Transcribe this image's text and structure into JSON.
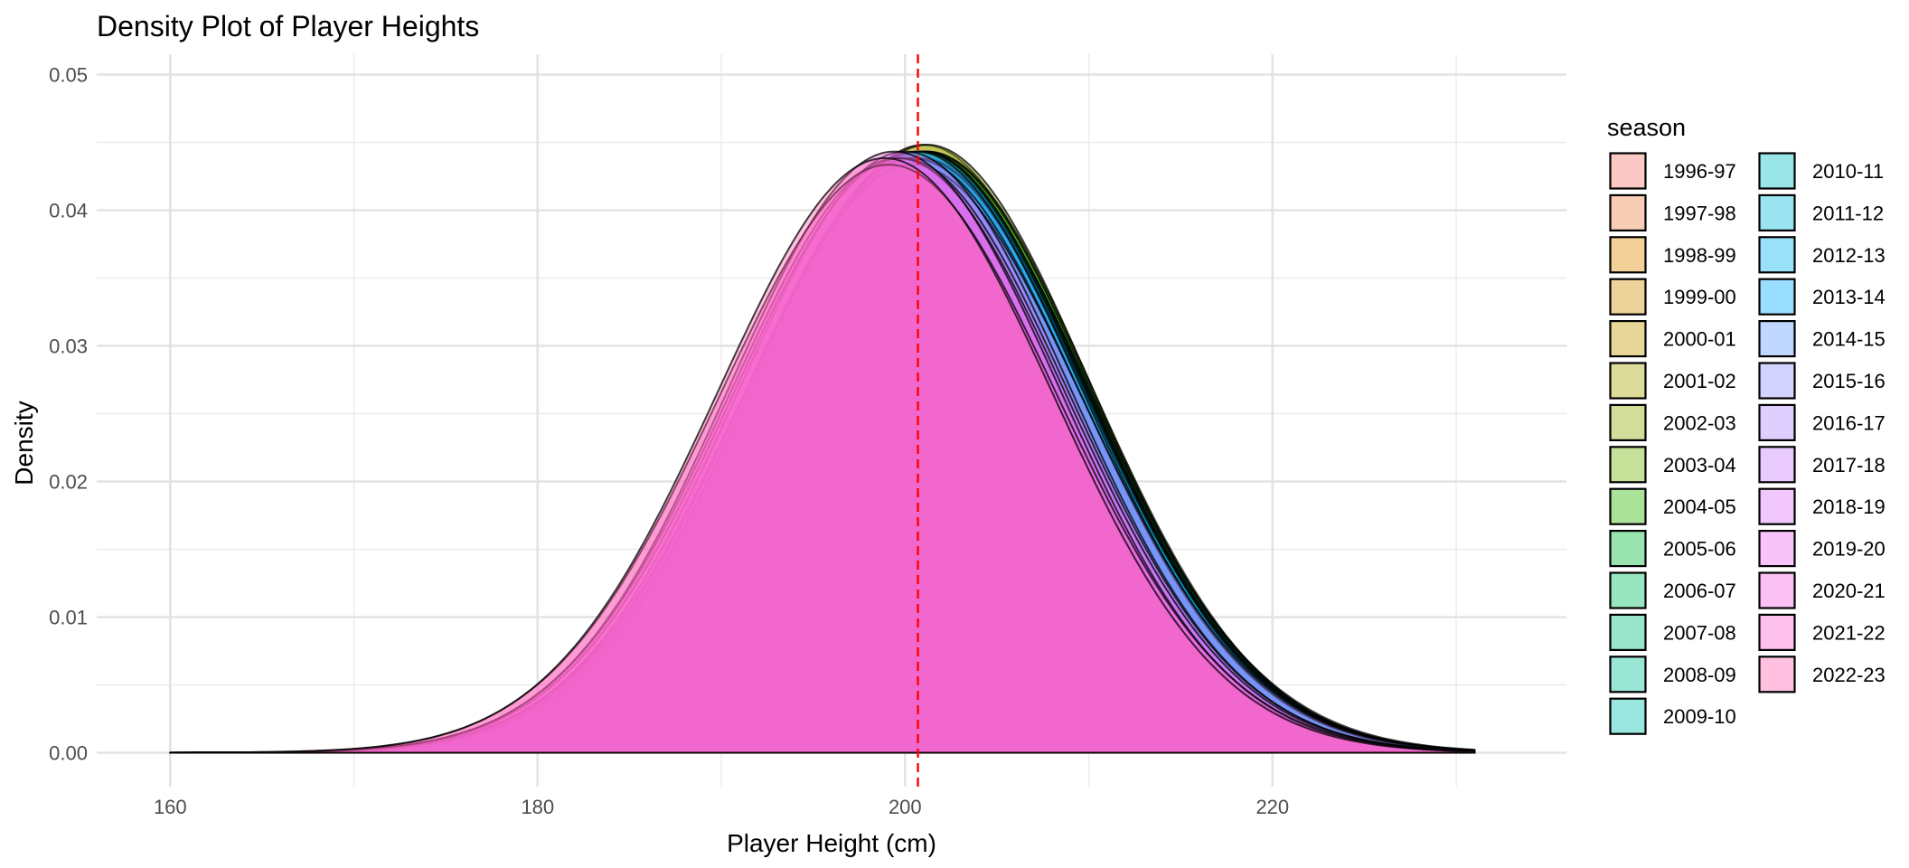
{
  "chart_data": {
    "type": "area",
    "subtype": "density",
    "title": "Density Plot of Player Heights",
    "xlabel": "Player Height (cm)",
    "ylabel": "Density",
    "xlim": [
      156,
      236
    ],
    "ylim": [
      -0.0025,
      0.0515
    ],
    "x_ticks": [
      160,
      180,
      200,
      220
    ],
    "x_minor": [
      170,
      190,
      210,
      230
    ],
    "y_ticks": [
      0.0,
      0.01,
      0.02,
      0.03,
      0.04,
      0.05
    ],
    "y_tick_labels": [
      "0.00",
      "0.01",
      "0.02",
      "0.03",
      "0.04",
      "0.05"
    ],
    "x_range": [
      160,
      231
    ],
    "grid": true,
    "fill_alpha": 0.4,
    "reference_line": {
      "x": 200.7,
      "color": "#ff0000",
      "style": "dashed"
    },
    "legend": {
      "title": "season",
      "position": "right",
      "columns": 2
    },
    "kernels": [
      {
        "season": "1996-97",
        "color": "#F8766D",
        "comps": [
          {
            "m": 200.7,
            "s": 9.2,
            "w": 1
          }
        ]
      },
      {
        "season": "1997-98",
        "color": "#F07F49",
        "comps": [
          {
            "m": 200.8,
            "s": 9.3,
            "w": 1
          }
        ]
      },
      {
        "season": "1998-99",
        "color": "#E38900",
        "comps": [
          {
            "m": 200.9,
            "s": 9.1,
            "w": 1
          }
        ]
      },
      {
        "season": "1999-00",
        "color": "#D39200",
        "comps": [
          {
            "m": 201.0,
            "s": 9.0,
            "w": 1
          }
        ]
      },
      {
        "season": "2000-01",
        "color": "#C09B00",
        "comps": [
          {
            "m": 201.0,
            "s": 8.9,
            "w": 1
          }
        ]
      },
      {
        "season": "2001-02",
        "color": "#A9A400",
        "comps": [
          {
            "m": 201.1,
            "s": 9.0,
            "w": 1
          }
        ]
      },
      {
        "season": "2002-03",
        "color": "#8EAB00",
        "comps": [
          {
            "m": 201.2,
            "s": 8.9,
            "w": 1
          }
        ]
      },
      {
        "season": "2003-04",
        "color": "#6BB100",
        "comps": [
          {
            "m": 201.2,
            "s": 9.0,
            "w": 1
          }
        ]
      },
      {
        "season": "2004-05",
        "color": "#2EB600",
        "comps": [
          {
            "m": 201.0,
            "s": 9.1,
            "w": 1
          }
        ]
      },
      {
        "season": "2005-06",
        "color": "#00BA38",
        "comps": [
          {
            "m": 201.1,
            "s": 9.0,
            "w": 1
          }
        ]
      },
      {
        "season": "2006-07",
        "color": "#00BD5F",
        "comps": [
          {
            "m": 201.0,
            "s": 9.1,
            "w": 1
          }
        ]
      },
      {
        "season": "2007-08",
        "color": "#00BF7D",
        "comps": [
          {
            "m": 200.9,
            "s": 9.0,
            "w": 1
          }
        ]
      },
      {
        "season": "2008-09",
        "color": "#00C097",
        "comps": [
          {
            "m": 200.9,
            "s": 9.1,
            "w": 1
          }
        ]
      },
      {
        "season": "2009-10",
        "color": "#00C0AF",
        "comps": [
          {
            "m": 200.8,
            "s": 9.1,
            "w": 1
          }
        ]
      },
      {
        "season": "2010-11",
        "color": "#00BFC4",
        "comps": [
          {
            "m": 200.9,
            "s": 9.0,
            "w": 1
          }
        ]
      },
      {
        "season": "2011-12",
        "color": "#00BBDA",
        "comps": [
          {
            "m": 200.8,
            "s": 9.1,
            "w": 1
          }
        ]
      },
      {
        "season": "2012-13",
        "color": "#00B4EF",
        "comps": [
          {
            "m": 200.8,
            "s": 9.0,
            "w": 1
          }
        ]
      },
      {
        "season": "2013-14",
        "color": "#00A9FF",
        "comps": [
          {
            "m": 200.7,
            "s": 9.1,
            "w": 1
          }
        ]
      },
      {
        "season": "2014-15",
        "color": "#619CFF",
        "comps": [
          {
            "m": 200.6,
            "s": 9.0,
            "w": 1
          }
        ]
      },
      {
        "season": "2015-16",
        "color": "#8F91FF",
        "comps": [
          {
            "m": 200.4,
            "s": 9.1,
            "w": 1
          }
        ]
      },
      {
        "season": "2016-17",
        "color": "#AE87FF",
        "comps": [
          {
            "m": 200.4,
            "s": 9.2,
            "w": 1
          }
        ]
      },
      {
        "season": "2017-18",
        "color": "#C77CFF",
        "comps": [
          {
            "m": 200.0,
            "s": 9.0,
            "w": 1
          }
        ]
      },
      {
        "season": "2018-19",
        "color": "#DB72FB",
        "comps": [
          {
            "m": 199.8,
            "s": 9.1,
            "w": 1
          }
        ]
      },
      {
        "season": "2019-20",
        "color": "#EA6AF1",
        "comps": [
          {
            "m": 199.6,
            "s": 9.1,
            "w": 1
          }
        ]
      },
      {
        "season": "2020-21",
        "color": "#F564E3",
        "comps": [
          {
            "m": 199.4,
            "s": 9.0,
            "w": 1
          }
        ]
      },
      {
        "season": "2021-22",
        "color": "#FC61D3",
        "comps": [
          {
            "m": 199.1,
            "s": 9.2,
            "w": 1
          }
        ]
      },
      {
        "season": "2022-23",
        "color": "#FF64B0",
        "comps": [
          {
            "m": 198.9,
            "s": 9.1,
            "w": 1
          }
        ]
      }
    ]
  }
}
